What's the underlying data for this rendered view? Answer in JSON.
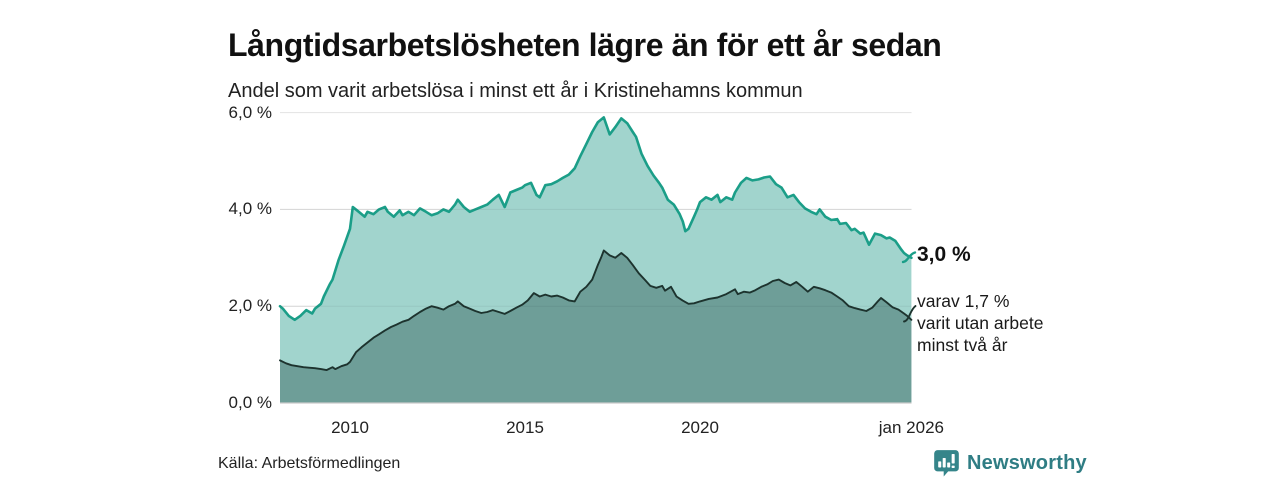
{
  "chart_data": {
    "type": "area",
    "title": "Långtidsarbetslösheten lägre än för ett år sedan",
    "subtitle": "Andel som varit arbetslösa i minst ett år i Kristinehamns kommun",
    "source": "Källa: Arbetsförmedlingen",
    "xlim": [
      2008.0,
      2026.1
    ],
    "ylim": [
      0,
      6.5
    ],
    "grid": true,
    "legend_position": "end-labels",
    "x_ticks": [
      {
        "label": "2010",
        "year": 2010
      },
      {
        "label": "2015",
        "year": 2015
      },
      {
        "label": "2020",
        "year": 2020
      },
      {
        "label": "jan 2026",
        "year": 2026.04
      }
    ],
    "y_ticks": [
      {
        "label": "0,0 %",
        "value": 0
      },
      {
        "label": "2,0 %",
        "value": 2
      },
      {
        "label": "4,0 %",
        "value": 4
      },
      {
        "label": "6,0 %",
        "value": 6
      }
    ],
    "annotations": {
      "total_end_label": "3,0 %",
      "secondary_end_lines": [
        "varav 1,7 %",
        "varit utan arbete",
        "minst två år"
      ]
    },
    "colors": {
      "grid": "#e2e2e2",
      "baseline": "#c9c9c9"
    },
    "series": [
      {
        "id": "unemployed-at-least-one-year",
        "end_value": 3.0,
        "color": "#1b9e88",
        "fill": "#a1d4cd",
        "values": [
          [
            2008.0,
            2.0
          ],
          [
            2008.08,
            1.95
          ],
          [
            2008.25,
            1.8
          ],
          [
            2008.42,
            1.72
          ],
          [
            2008.58,
            1.8
          ],
          [
            2008.75,
            1.92
          ],
          [
            2008.92,
            1.85
          ],
          [
            2009.0,
            1.95
          ],
          [
            2009.17,
            2.05
          ],
          [
            2009.25,
            2.2
          ],
          [
            2009.42,
            2.45
          ],
          [
            2009.5,
            2.55
          ],
          [
            2009.67,
            2.95
          ],
          [
            2009.83,
            3.25
          ],
          [
            2010.0,
            3.6
          ],
          [
            2010.08,
            4.05
          ],
          [
            2010.25,
            3.95
          ],
          [
            2010.42,
            3.85
          ],
          [
            2010.5,
            3.95
          ],
          [
            2010.67,
            3.9
          ],
          [
            2010.83,
            4.0
          ],
          [
            2011.0,
            4.05
          ],
          [
            2011.08,
            3.95
          ],
          [
            2011.25,
            3.85
          ],
          [
            2011.42,
            3.98
          ],
          [
            2011.5,
            3.88
          ],
          [
            2011.67,
            3.95
          ],
          [
            2011.83,
            3.88
          ],
          [
            2012.0,
            4.02
          ],
          [
            2012.17,
            3.95
          ],
          [
            2012.33,
            3.88
          ],
          [
            2012.5,
            3.92
          ],
          [
            2012.67,
            4.0
          ],
          [
            2012.83,
            3.95
          ],
          [
            2013.0,
            4.1
          ],
          [
            2013.08,
            4.2
          ],
          [
            2013.25,
            4.05
          ],
          [
            2013.42,
            3.95
          ],
          [
            2013.58,
            4.0
          ],
          [
            2013.75,
            4.05
          ],
          [
            2013.92,
            4.1
          ],
          [
            2014.08,
            4.2
          ],
          [
            2014.25,
            4.3
          ],
          [
            2014.42,
            4.05
          ],
          [
            2014.58,
            4.35
          ],
          [
            2014.75,
            4.4
          ],
          [
            2014.92,
            4.45
          ],
          [
            2015.0,
            4.5
          ],
          [
            2015.17,
            4.55
          ],
          [
            2015.33,
            4.3
          ],
          [
            2015.42,
            4.25
          ],
          [
            2015.58,
            4.5
          ],
          [
            2015.75,
            4.52
          ],
          [
            2015.92,
            4.58
          ],
          [
            2016.08,
            4.65
          ],
          [
            2016.25,
            4.72
          ],
          [
            2016.42,
            4.85
          ],
          [
            2016.58,
            5.1
          ],
          [
            2016.75,
            5.35
          ],
          [
            2016.92,
            5.6
          ],
          [
            2017.08,
            5.8
          ],
          [
            2017.25,
            5.9
          ],
          [
            2017.42,
            5.55
          ],
          [
            2017.58,
            5.7
          ],
          [
            2017.75,
            5.88
          ],
          [
            2017.92,
            5.78
          ],
          [
            2018.08,
            5.6
          ],
          [
            2018.17,
            5.5
          ],
          [
            2018.33,
            5.15
          ],
          [
            2018.5,
            4.9
          ],
          [
            2018.67,
            4.7
          ],
          [
            2018.83,
            4.55
          ],
          [
            2018.92,
            4.45
          ],
          [
            2019.08,
            4.2
          ],
          [
            2019.25,
            4.1
          ],
          [
            2019.42,
            3.9
          ],
          [
            2019.51,
            3.75
          ],
          [
            2019.58,
            3.55
          ],
          [
            2019.67,
            3.6
          ],
          [
            2019.83,
            3.85
          ],
          [
            2019.92,
            4.0
          ],
          [
            2020.0,
            4.15
          ],
          [
            2020.17,
            4.25
          ],
          [
            2020.33,
            4.2
          ],
          [
            2020.5,
            4.3
          ],
          [
            2020.58,
            4.15
          ],
          [
            2020.75,
            4.25
          ],
          [
            2020.92,
            4.2
          ],
          [
            2021.0,
            4.35
          ],
          [
            2021.17,
            4.55
          ],
          [
            2021.33,
            4.65
          ],
          [
            2021.5,
            4.6
          ],
          [
            2021.67,
            4.62
          ],
          [
            2021.83,
            4.66
          ],
          [
            2022.0,
            4.68
          ],
          [
            2022.17,
            4.52
          ],
          [
            2022.33,
            4.45
          ],
          [
            2022.5,
            4.25
          ],
          [
            2022.67,
            4.3
          ],
          [
            2022.83,
            4.15
          ],
          [
            2023.0,
            4.02
          ],
          [
            2023.17,
            3.95
          ],
          [
            2023.33,
            3.9
          ],
          [
            2023.42,
            4.0
          ],
          [
            2023.58,
            3.85
          ],
          [
            2023.75,
            3.78
          ],
          [
            2023.92,
            3.8
          ],
          [
            2024.0,
            3.7
          ],
          [
            2024.17,
            3.72
          ],
          [
            2024.33,
            3.57
          ],
          [
            2024.42,
            3.6
          ],
          [
            2024.58,
            3.5
          ],
          [
            2024.67,
            3.52
          ],
          [
            2024.83,
            3.27
          ],
          [
            2025.0,
            3.5
          ],
          [
            2025.17,
            3.47
          ],
          [
            2025.33,
            3.4
          ],
          [
            2025.42,
            3.42
          ],
          [
            2025.58,
            3.35
          ],
          [
            2025.75,
            3.17
          ],
          [
            2025.83,
            3.1
          ],
          [
            2025.92,
            3.05
          ],
          [
            2026.04,
            3.0
          ]
        ]
      },
      {
        "id": "unemployed-at-least-two-years",
        "end_value": 1.7,
        "color": "#1d332e",
        "fill": "#6e9e98",
        "values": [
          [
            2008.0,
            0.88
          ],
          [
            2008.17,
            0.82
          ],
          [
            2008.33,
            0.78
          ],
          [
            2008.5,
            0.76
          ],
          [
            2008.67,
            0.74
          ],
          [
            2008.83,
            0.73
          ],
          [
            2009.0,
            0.72
          ],
          [
            2009.17,
            0.7
          ],
          [
            2009.33,
            0.68
          ],
          [
            2009.5,
            0.74
          ],
          [
            2009.58,
            0.7
          ],
          [
            2009.75,
            0.76
          ],
          [
            2009.92,
            0.8
          ],
          [
            2010.0,
            0.85
          ],
          [
            2010.17,
            1.05
          ],
          [
            2010.33,
            1.15
          ],
          [
            2010.5,
            1.25
          ],
          [
            2010.67,
            1.35
          ],
          [
            2010.83,
            1.42
          ],
          [
            2011.0,
            1.5
          ],
          [
            2011.17,
            1.57
          ],
          [
            2011.33,
            1.62
          ],
          [
            2011.5,
            1.68
          ],
          [
            2011.67,
            1.72
          ],
          [
            2011.83,
            1.8
          ],
          [
            2012.0,
            1.88
          ],
          [
            2012.17,
            1.95
          ],
          [
            2012.33,
            2.0
          ],
          [
            2012.5,
            1.97
          ],
          [
            2012.67,
            1.93
          ],
          [
            2012.83,
            2.0
          ],
          [
            2013.0,
            2.05
          ],
          [
            2013.08,
            2.1
          ],
          [
            2013.25,
            2.0
          ],
          [
            2013.42,
            1.95
          ],
          [
            2013.58,
            1.9
          ],
          [
            2013.75,
            1.86
          ],
          [
            2013.92,
            1.88
          ],
          [
            2014.08,
            1.92
          ],
          [
            2014.25,
            1.88
          ],
          [
            2014.42,
            1.84
          ],
          [
            2014.58,
            1.9
          ],
          [
            2014.75,
            1.97
          ],
          [
            2014.92,
            2.03
          ],
          [
            2015.08,
            2.12
          ],
          [
            2015.25,
            2.27
          ],
          [
            2015.42,
            2.2
          ],
          [
            2015.58,
            2.24
          ],
          [
            2015.75,
            2.2
          ],
          [
            2015.92,
            2.22
          ],
          [
            2016.08,
            2.18
          ],
          [
            2016.25,
            2.12
          ],
          [
            2016.42,
            2.1
          ],
          [
            2016.58,
            2.3
          ],
          [
            2016.75,
            2.4
          ],
          [
            2016.92,
            2.55
          ],
          [
            2017.08,
            2.85
          ],
          [
            2017.17,
            3.0
          ],
          [
            2017.25,
            3.15
          ],
          [
            2017.42,
            3.05
          ],
          [
            2017.58,
            3.0
          ],
          [
            2017.75,
            3.1
          ],
          [
            2017.92,
            3.0
          ],
          [
            2018.08,
            2.85
          ],
          [
            2018.25,
            2.68
          ],
          [
            2018.42,
            2.55
          ],
          [
            2018.58,
            2.42
          ],
          [
            2018.75,
            2.38
          ],
          [
            2018.92,
            2.42
          ],
          [
            2019.0,
            2.32
          ],
          [
            2019.17,
            2.4
          ],
          [
            2019.33,
            2.2
          ],
          [
            2019.5,
            2.12
          ],
          [
            2019.67,
            2.05
          ],
          [
            2019.83,
            2.06
          ],
          [
            2020.0,
            2.1
          ],
          [
            2020.25,
            2.15
          ],
          [
            2020.5,
            2.18
          ],
          [
            2020.75,
            2.25
          ],
          [
            2021.0,
            2.35
          ],
          [
            2021.08,
            2.25
          ],
          [
            2021.25,
            2.3
          ],
          [
            2021.42,
            2.28
          ],
          [
            2021.58,
            2.33
          ],
          [
            2021.75,
            2.4
          ],
          [
            2021.92,
            2.45
          ],
          [
            2022.08,
            2.52
          ],
          [
            2022.25,
            2.55
          ],
          [
            2022.42,
            2.48
          ],
          [
            2022.58,
            2.43
          ],
          [
            2022.75,
            2.5
          ],
          [
            2022.92,
            2.4
          ],
          [
            2023.08,
            2.3
          ],
          [
            2023.25,
            2.4
          ],
          [
            2023.42,
            2.37
          ],
          [
            2023.58,
            2.33
          ],
          [
            2023.75,
            2.28
          ],
          [
            2023.92,
            2.2
          ],
          [
            2024.08,
            2.12
          ],
          [
            2024.25,
            2.0
          ],
          [
            2024.42,
            1.96
          ],
          [
            2024.58,
            1.93
          ],
          [
            2024.75,
            1.9
          ],
          [
            2024.92,
            1.97
          ],
          [
            2025.08,
            2.1
          ],
          [
            2025.17,
            2.17
          ],
          [
            2025.33,
            2.08
          ],
          [
            2025.5,
            1.98
          ],
          [
            2025.67,
            1.93
          ],
          [
            2025.83,
            1.85
          ],
          [
            2025.92,
            1.8
          ],
          [
            2026.04,
            1.72
          ]
        ]
      }
    ]
  },
  "footer": {
    "brand": "Newsworthy",
    "brand_color": "#2f7d84",
    "icon": "bar-chart-speech-bubble-icon",
    "icon_color": "#35858a"
  }
}
